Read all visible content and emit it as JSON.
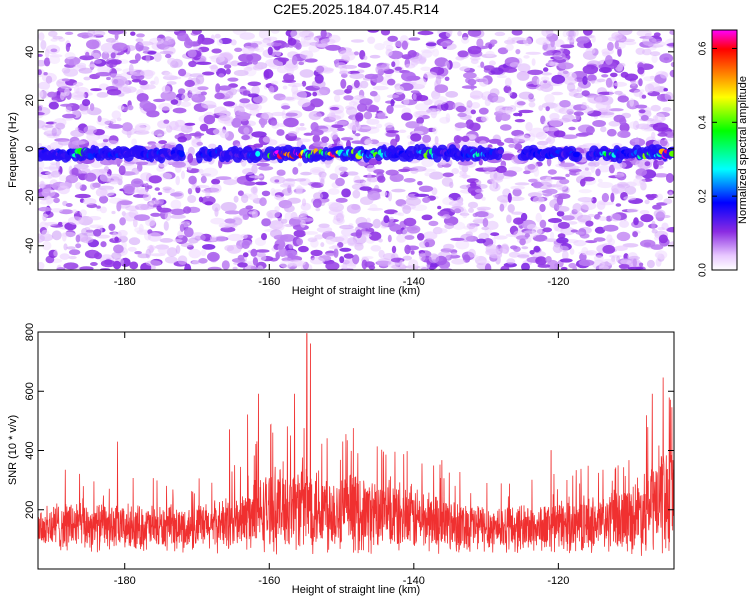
{
  "chart_data": [
    {
      "type": "heatmap",
      "title": "C2E5.2025.184.07.45.R14",
      "xlabel": "Height of straight line (km)",
      "ylabel": "Frequency (Hz)",
      "xlim": [
        -192,
        -104
      ],
      "ylim": [
        -50,
        49
      ],
      "xticks": [
        -180,
        -160,
        -140,
        -120
      ],
      "yticks": [
        -40,
        -20,
        0,
        20,
        40
      ],
      "colorbar": {
        "label": "Normalized spectral amplitude",
        "range": [
          0,
          0.65
        ],
        "ticks": [
          0.0,
          0.2,
          0.4,
          0.6
        ],
        "colormap": [
          "#ffffff",
          "#e8c8ff",
          "#8a2be2",
          "#0000ff",
          "#00ffff",
          "#00ff00",
          "#ffff00",
          "#ff7f00",
          "#ff0000",
          "#ff00ff"
        ]
      },
      "band": {
        "center_frequency": -2,
        "half_width": 4,
        "gaps": [
          [
            -172,
            -170
          ],
          [
            -161.5,
            -160.5
          ],
          [
            -128,
            -125
          ],
          [
            -117.5,
            -116
          ]
        ],
        "peaks": [
          {
            "x": -186,
            "amplitude": 0.3
          },
          {
            "x": -161,
            "amplitude": 0.22
          },
          {
            "x": -159,
            "amplitude": 0.62
          },
          {
            "x": -157.5,
            "amplitude": 0.4
          },
          {
            "x": -156,
            "amplitude": 0.62
          },
          {
            "x": -153.5,
            "amplitude": 0.45
          },
          {
            "x": -151,
            "amplitude": 0.55
          },
          {
            "x": -148,
            "amplitude": 0.4
          },
          {
            "x": -145,
            "amplitude": 0.28
          },
          {
            "x": -138,
            "amplitude": 0.3
          },
          {
            "x": -131,
            "amplitude": 0.22
          },
          {
            "x": -113,
            "amplitude": 0.32
          },
          {
            "x": -108,
            "amplitude": 0.35
          },
          {
            "x": -105,
            "amplitude": 0.62
          }
        ]
      }
    },
    {
      "type": "line",
      "title": "",
      "xlabel": "Height of straight line (km)",
      "ylabel": "SNR (10 * v/v)",
      "xlim": [
        -192,
        -104
      ],
      "ylim": [
        0,
        800
      ],
      "xticks": [
        -180,
        -160,
        -140,
        -120
      ],
      "yticks": [
        200,
        400,
        600,
        800
      ],
      "color": "#f03030",
      "series": [
        {
          "x": [
            -192,
            -188,
            -184,
            -180,
            -176,
            -172,
            -168,
            -164,
            -160,
            -158,
            -156,
            -154,
            -152,
            -150,
            -146,
            -142,
            -138,
            -134,
            -130,
            -126,
            -122,
            -118,
            -114,
            -110,
            -107,
            -104
          ],
          "mean": [
            140,
            150,
            145,
            140,
            140,
            135,
            145,
            160,
            200,
            210,
            215,
            215,
            205,
            195,
            185,
            175,
            165,
            150,
            140,
            140,
            140,
            150,
            155,
            175,
            215,
            250
          ],
          "spread": [
            80,
            90,
            85,
            80,
            80,
            75,
            85,
            100,
            140,
            150,
            160,
            160,
            150,
            140,
            130,
            120,
            110,
            95,
            85,
            85,
            85,
            95,
            100,
            120,
            170,
            200
          ]
        }
      ],
      "spikes": [
        {
          "x": -181,
          "y": 430
        },
        {
          "x": -165.5,
          "y": 470
        },
        {
          "x": -163,
          "y": 520
        },
        {
          "x": -161.5,
          "y": 590
        },
        {
          "x": -157.5,
          "y": 480
        },
        {
          "x": -156.5,
          "y": 590
        },
        {
          "x": -154.8,
          "y": 795
        },
        {
          "x": -154.3,
          "y": 760
        },
        {
          "x": -152,
          "y": 440
        },
        {
          "x": -121,
          "y": 400
        },
        {
          "x": -107,
          "y": 590
        },
        {
          "x": -105.5,
          "y": 645
        },
        {
          "x": -104.5,
          "y": 570
        }
      ]
    }
  ]
}
